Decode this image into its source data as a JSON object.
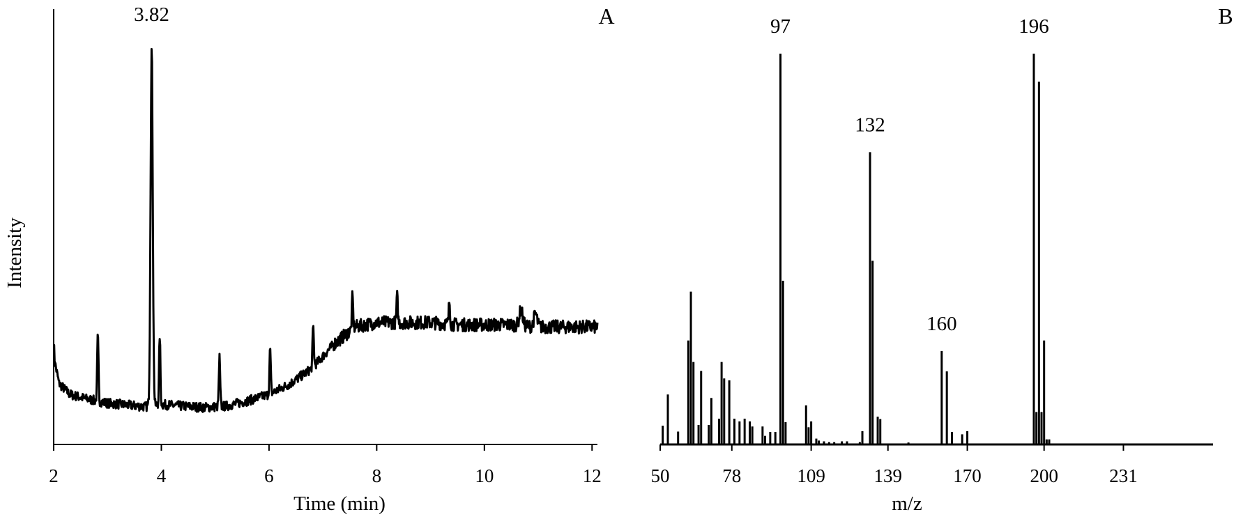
{
  "colors": {
    "ink": "#000000",
    "background": "#ffffff"
  },
  "chart_data": [
    {
      "type": "line",
      "panel_label": "A",
      "xlabel": "Time (min)",
      "ylabel": "Intensity",
      "xlim": [
        2,
        12.1
      ],
      "ylim": [
        0,
        1
      ],
      "xticks": [
        "2",
        "4",
        "6",
        "8",
        "10",
        "12"
      ],
      "y_ticks_shown": false,
      "grid": false,
      "legend": "none",
      "annotations": [
        {
          "text": "3.82",
          "x": 3.82
        }
      ],
      "baseline": {
        "x": [
          2.0,
          2.02,
          2.1,
          2.3,
          2.6,
          3.0,
          3.4,
          3.7,
          4.0,
          4.4,
          4.8,
          5.2,
          5.6,
          6.0,
          6.4,
          6.8,
          7.2,
          7.6,
          8.0,
          8.5,
          9.0,
          9.5,
          10.0,
          10.5,
          11.0,
          11.5,
          12.1
        ],
        "y": [
          0.24,
          0.19,
          0.14,
          0.115,
          0.105,
          0.095,
          0.09,
          0.087,
          0.092,
          0.088,
          0.085,
          0.088,
          0.1,
          0.115,
          0.14,
          0.175,
          0.23,
          0.27,
          0.28,
          0.28,
          0.28,
          0.275,
          0.275,
          0.275,
          0.27,
          0.27,
          0.27
        ]
      },
      "peaks": [
        {
          "x": 2.82,
          "y": 0.25,
          "width": 0.012
        },
        {
          "x": 3.82,
          "y": 0.91,
          "width": 0.02
        },
        {
          "x": 3.97,
          "y": 0.25,
          "width": 0.012
        },
        {
          "x": 5.08,
          "y": 0.2,
          "width": 0.012
        },
        {
          "x": 6.02,
          "y": 0.22,
          "width": 0.012
        },
        {
          "x": 6.82,
          "y": 0.27,
          "width": 0.012
        },
        {
          "x": 7.55,
          "y": 0.34,
          "width": 0.012
        },
        {
          "x": 8.38,
          "y": 0.34,
          "width": 0.012
        },
        {
          "x": 9.35,
          "y": 0.33,
          "width": 0.012
        },
        {
          "x": 10.68,
          "y": 0.31,
          "width": 0.03
        },
        {
          "x": 10.95,
          "y": 0.3,
          "width": 0.03
        }
      ]
    },
    {
      "type": "bar",
      "panel_label": "B",
      "xlabel": "m/z",
      "xlim": [
        50,
        266
      ],
      "ylim": [
        0,
        100
      ],
      "xticks": [
        "50",
        "78",
        "109",
        "139",
        "170",
        "200",
        "231"
      ],
      "y_ticks_shown": false,
      "grid": false,
      "legend": "none",
      "annotations": [
        {
          "text": "97",
          "x": 97
        },
        {
          "text": "132",
          "x": 132
        },
        {
          "text": "160",
          "x": 160
        },
        {
          "text": "196",
          "x": 196
        }
      ],
      "x": [
        51,
        53,
        57,
        61,
        62,
        63,
        65,
        66,
        69,
        70,
        73,
        74,
        75,
        77,
        79,
        81,
        83,
        85,
        86,
        90,
        91,
        93,
        95,
        97,
        98,
        99,
        107,
        108,
        109,
        111,
        112,
        114,
        116,
        118,
        121,
        123,
        128,
        129,
        132,
        133,
        135,
        136,
        147,
        160,
        162,
        164,
        168,
        170,
        196,
        197,
        198,
        199,
        200,
        201,
        202
      ],
      "values": [
        4.8,
        12.8,
        3.3,
        26.6,
        39.1,
        21.1,
        5,
        18.8,
        5,
        11.9,
        6.6,
        21.1,
        16.9,
        16.4,
        6.6,
        5.9,
        6.6,
        5.9,
        4.6,
        4.6,
        2.2,
        3.2,
        3.2,
        100,
        41.9,
        5.7,
        10,
        4.4,
        5.9,
        1.5,
        1,
        0.8,
        0.6,
        0.6,
        0.8,
        0.8,
        0.6,
        3.4,
        74.8,
        47,
        7.1,
        6.5,
        0.5,
        23.9,
        18.7,
        3.2,
        2.6,
        3.4,
        100,
        8.3,
        92.8,
        8.3,
        26.6,
        1.3,
        1.3
      ]
    }
  ]
}
